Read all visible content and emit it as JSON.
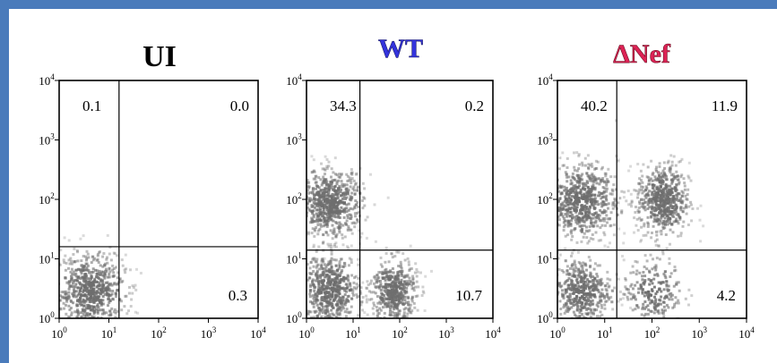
{
  "colors": {
    "frame": "#4a7bbb",
    "background": "#ffffff",
    "dots": "#6e6e6e",
    "wt_title": "#3333dd",
    "nef_title": "#dd2255"
  },
  "chart_data": [
    {
      "type": "scatter",
      "title": "UI",
      "xlabel": "",
      "ylabel": "",
      "scale": "log",
      "xlim": [
        1,
        10000
      ],
      "ylim": [
        1,
        10000
      ],
      "x_ticks": [
        "10",
        "10",
        "10",
        "10",
        "10"
      ],
      "x_tick_exponents": [
        "0",
        "1",
        "2",
        "3",
        "4"
      ],
      "y_ticks": [
        "10",
        "10",
        "10",
        "10",
        "10"
      ],
      "y_tick_exponents": [
        "0",
        "1",
        "2",
        "3",
        "4"
      ],
      "gate": {
        "x": 16,
        "y": 16
      },
      "quadrants": {
        "upper_left": "0.1",
        "upper_right": "0.0",
        "lower_left": "",
        "lower_right": "0.3"
      },
      "populations": [
        {
          "center_x": 4,
          "center_y": 3,
          "spread_x": 0.5,
          "spread_y": 0.45,
          "density": 1.0
        }
      ]
    },
    {
      "type": "scatter",
      "title": "WT",
      "xlabel": "",
      "ylabel": "",
      "scale": "log",
      "xlim": [
        1,
        10000
      ],
      "ylim": [
        1,
        10000
      ],
      "x_ticks": [
        "10",
        "10",
        "10",
        "10",
        "10"
      ],
      "x_tick_exponents": [
        "0",
        "1",
        "2",
        "3",
        "4"
      ],
      "y_ticks": [
        "10",
        "10",
        "10",
        "10",
        "10"
      ],
      "y_tick_exponents": [
        "0",
        "1",
        "2",
        "3",
        "4"
      ],
      "gate": {
        "x": 14,
        "y": 14
      },
      "quadrants": {
        "upper_left": "34.3",
        "upper_right": "0.2",
        "lower_left": "",
        "lower_right": "10.7"
      },
      "populations": [
        {
          "center_x": 3,
          "center_y": 90,
          "spread_x": 0.5,
          "spread_y": 0.4,
          "density": 1.0
        },
        {
          "center_x": 3,
          "center_y": 3,
          "spread_x": 0.45,
          "spread_y": 0.45,
          "density": 0.9
        },
        {
          "center_x": 70,
          "center_y": 3,
          "spread_x": 0.35,
          "spread_y": 0.4,
          "density": 0.7
        }
      ]
    },
    {
      "type": "scatter",
      "title": "ΔNef",
      "xlabel": "",
      "ylabel": "",
      "scale": "log",
      "xlim": [
        1,
        10000
      ],
      "ylim": [
        1,
        10000
      ],
      "x_ticks": [
        "10",
        "10",
        "10",
        "10",
        "10"
      ],
      "x_tick_exponents": [
        "0",
        "1",
        "2",
        "3",
        "4"
      ],
      "y_ticks": [
        "10",
        "10",
        "10",
        "10",
        "10"
      ],
      "y_tick_exponents": [
        "0",
        "1",
        "2",
        "3",
        "4"
      ],
      "gate": {
        "x": 18,
        "y": 14
      },
      "quadrants": {
        "upper_left": "40.2",
        "upper_right": "11.9",
        "lower_left": "",
        "lower_right": "4.2"
      },
      "populations": [
        {
          "center_x": 3,
          "center_y": 100,
          "spread_x": 0.55,
          "spread_y": 0.45,
          "density": 1.0
        },
        {
          "center_x": 160,
          "center_y": 100,
          "spread_x": 0.4,
          "spread_y": 0.45,
          "density": 0.85
        },
        {
          "center_x": 3,
          "center_y": 3,
          "spread_x": 0.45,
          "spread_y": 0.4,
          "density": 0.7
        },
        {
          "center_x": 100,
          "center_y": 3,
          "spread_x": 0.45,
          "spread_y": 0.4,
          "density": 0.35
        }
      ]
    }
  ]
}
